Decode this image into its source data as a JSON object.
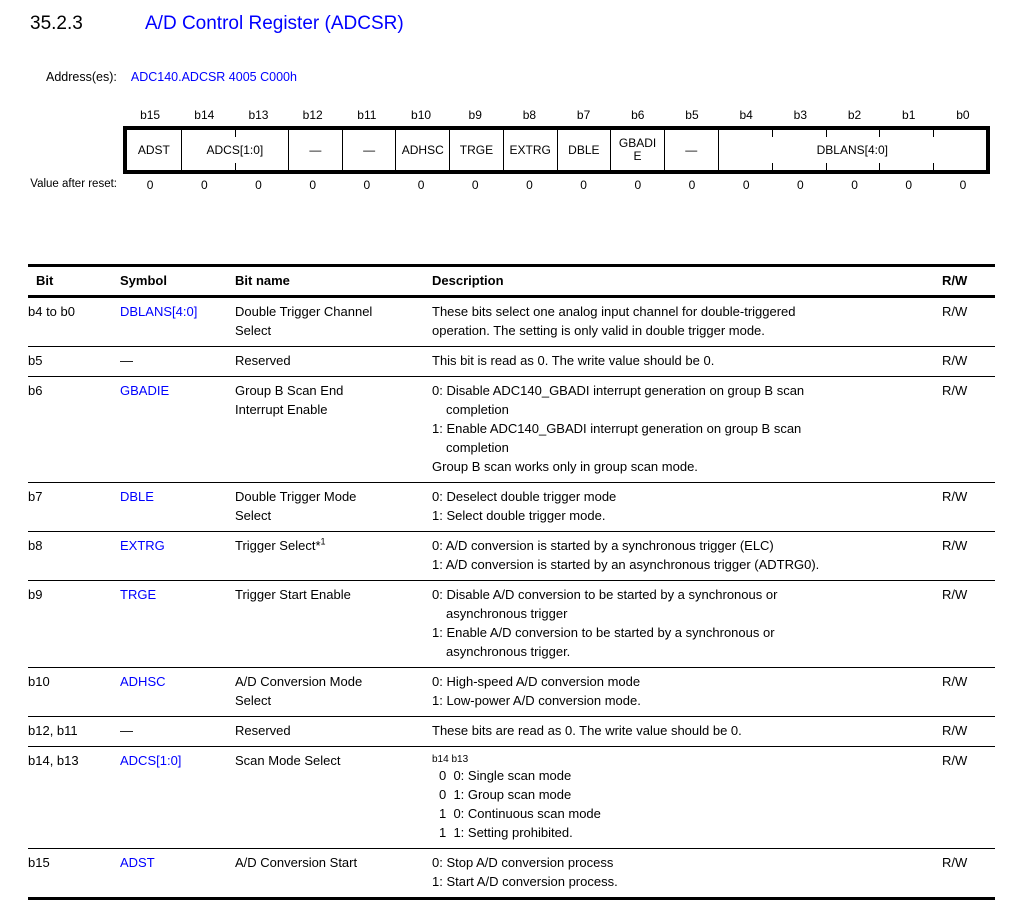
{
  "page": {
    "section_number": "35.2.3",
    "title": "A/D Control Register (ADCSR)",
    "address_label": "Address(es):",
    "address_value": "ADC140.ADCSR 4005 C000h"
  },
  "colors": {
    "link_blue": "#0000FF",
    "text_black": "#000000",
    "background": "#FFFFFF"
  },
  "register_diagram": {
    "bit_labels": [
      "b15",
      "b14",
      "b13",
      "b12",
      "b11",
      "b10",
      "b9",
      "b8",
      "b7",
      "b6",
      "b5",
      "b4",
      "b3",
      "b2",
      "b1",
      "b0"
    ],
    "fields": [
      {
        "label": "ADST",
        "span": 1
      },
      {
        "label": "ADCS[1:0]",
        "span": 2
      },
      {
        "label": "—",
        "span": 1
      },
      {
        "label": "—",
        "span": 1
      },
      {
        "label": "ADHSC",
        "span": 1
      },
      {
        "label": "TRGE",
        "span": 1
      },
      {
        "label": "EXTRG",
        "span": 1
      },
      {
        "label": "DBLE",
        "span": 1
      },
      {
        "label": "GBADIE",
        "span": 1,
        "wrap": true
      },
      {
        "label": "—",
        "span": 1
      },
      {
        "label": "DBLANS[4:0]",
        "span": 5
      }
    ],
    "reset_label": "Value after reset:",
    "reset_values": [
      "0",
      "0",
      "0",
      "0",
      "0",
      "0",
      "0",
      "0",
      "0",
      "0",
      "0",
      "0",
      "0",
      "0",
      "0",
      "0"
    ]
  },
  "bit_table": {
    "headers": {
      "bit": "Bit",
      "symbol": "Symbol",
      "bit_name": "Bit name",
      "description": "Description",
      "rw": "R/W"
    },
    "rows": [
      {
        "bit": "b4 to b0",
        "symbol": "DBLANS[4:0]",
        "symbol_link": true,
        "bit_name": [
          "Double Trigger Channel",
          "Select"
        ],
        "description": [
          {
            "t": "These bits select one analog input channel for double-triggered"
          },
          {
            "t": "operation. The setting is only valid in double trigger mode."
          }
        ],
        "rw": "R/W"
      },
      {
        "bit": "b5",
        "symbol": "—",
        "symbol_link": false,
        "bit_name": [
          "Reserved"
        ],
        "description": [
          {
            "t": "This bit is read as 0. The write value should be 0."
          }
        ],
        "rw": "R/W"
      },
      {
        "bit": "b6",
        "symbol": "GBADIE",
        "symbol_link": true,
        "bit_name": [
          "Group B Scan End",
          "Interrupt Enable"
        ],
        "description": [
          {
            "t": "0: Disable ADC140_GBADI interrupt generation on group B scan"
          },
          {
            "t": "completion",
            "ind": 1
          },
          {
            "t": "1: Enable ADC140_GBADI interrupt generation on group B scan"
          },
          {
            "t": "completion",
            "ind": 1
          },
          {
            "t": "Group B scan works only in group scan mode."
          }
        ],
        "rw": "R/W"
      },
      {
        "bit": "b7",
        "symbol": "DBLE",
        "symbol_link": true,
        "bit_name": [
          "Double Trigger Mode",
          "Select"
        ],
        "description": [
          {
            "t": "0: Deselect double trigger mode"
          },
          {
            "t": "1: Select double trigger mode."
          }
        ],
        "rw": "R/W"
      },
      {
        "bit": "b8",
        "symbol": "EXTRG",
        "symbol_link": true,
        "bit_name": [
          "Trigger Select*"
        ],
        "bit_name_sup": "1",
        "description": [
          {
            "t": "0: A/D conversion is started by a synchronous trigger (ELC)"
          },
          {
            "t": "1: A/D conversion is started by an asynchronous trigger (ADTRG0)."
          }
        ],
        "rw": "R/W"
      },
      {
        "bit": "b9",
        "symbol": "TRGE",
        "symbol_link": true,
        "bit_name": [
          "Trigger Start Enable"
        ],
        "description": [
          {
            "t": "0: Disable A/D conversion to be started by a synchronous or"
          },
          {
            "t": "asynchronous trigger",
            "ind": 1
          },
          {
            "t": "1: Enable A/D conversion to be started by a synchronous or"
          },
          {
            "t": "asynchronous trigger.",
            "ind": 1
          }
        ],
        "rw": "R/W"
      },
      {
        "bit": "b10",
        "symbol": "ADHSC",
        "symbol_link": true,
        "bit_name": [
          "A/D Conversion Mode",
          "Select"
        ],
        "description": [
          {
            "t": "0: High-speed A/D conversion mode"
          },
          {
            "t": "1: Low-power A/D conversion mode."
          }
        ],
        "rw": "R/W"
      },
      {
        "bit": "b12, b11",
        "symbol": "—",
        "symbol_link": false,
        "bit_name": [
          "Reserved"
        ],
        "description": [
          {
            "t": "These bits are read as 0. The write value should be 0."
          }
        ],
        "rw": "R/W"
      },
      {
        "bit": "b14, b13",
        "symbol": "ADCS[1:0]",
        "symbol_link": true,
        "bit_name": [
          "Scan Mode Select"
        ],
        "description": [
          {
            "t": "b14 b13",
            "small": true
          },
          {
            "t": "0  0: Single scan mode",
            "ind": 2
          },
          {
            "t": "0  1: Group scan mode",
            "ind": 2
          },
          {
            "t": "1  0: Continuous scan mode",
            "ind": 2
          },
          {
            "t": "1  1: Setting prohibited.",
            "ind": 2
          }
        ],
        "rw": "R/W"
      },
      {
        "bit": "b15",
        "symbol": "ADST",
        "symbol_link": true,
        "bit_name": [
          "A/D Conversion Start"
        ],
        "description": [
          {
            "t": "0: Stop A/D conversion process"
          },
          {
            "t": "1: Start A/D conversion process."
          }
        ],
        "rw": "R/W"
      }
    ]
  }
}
